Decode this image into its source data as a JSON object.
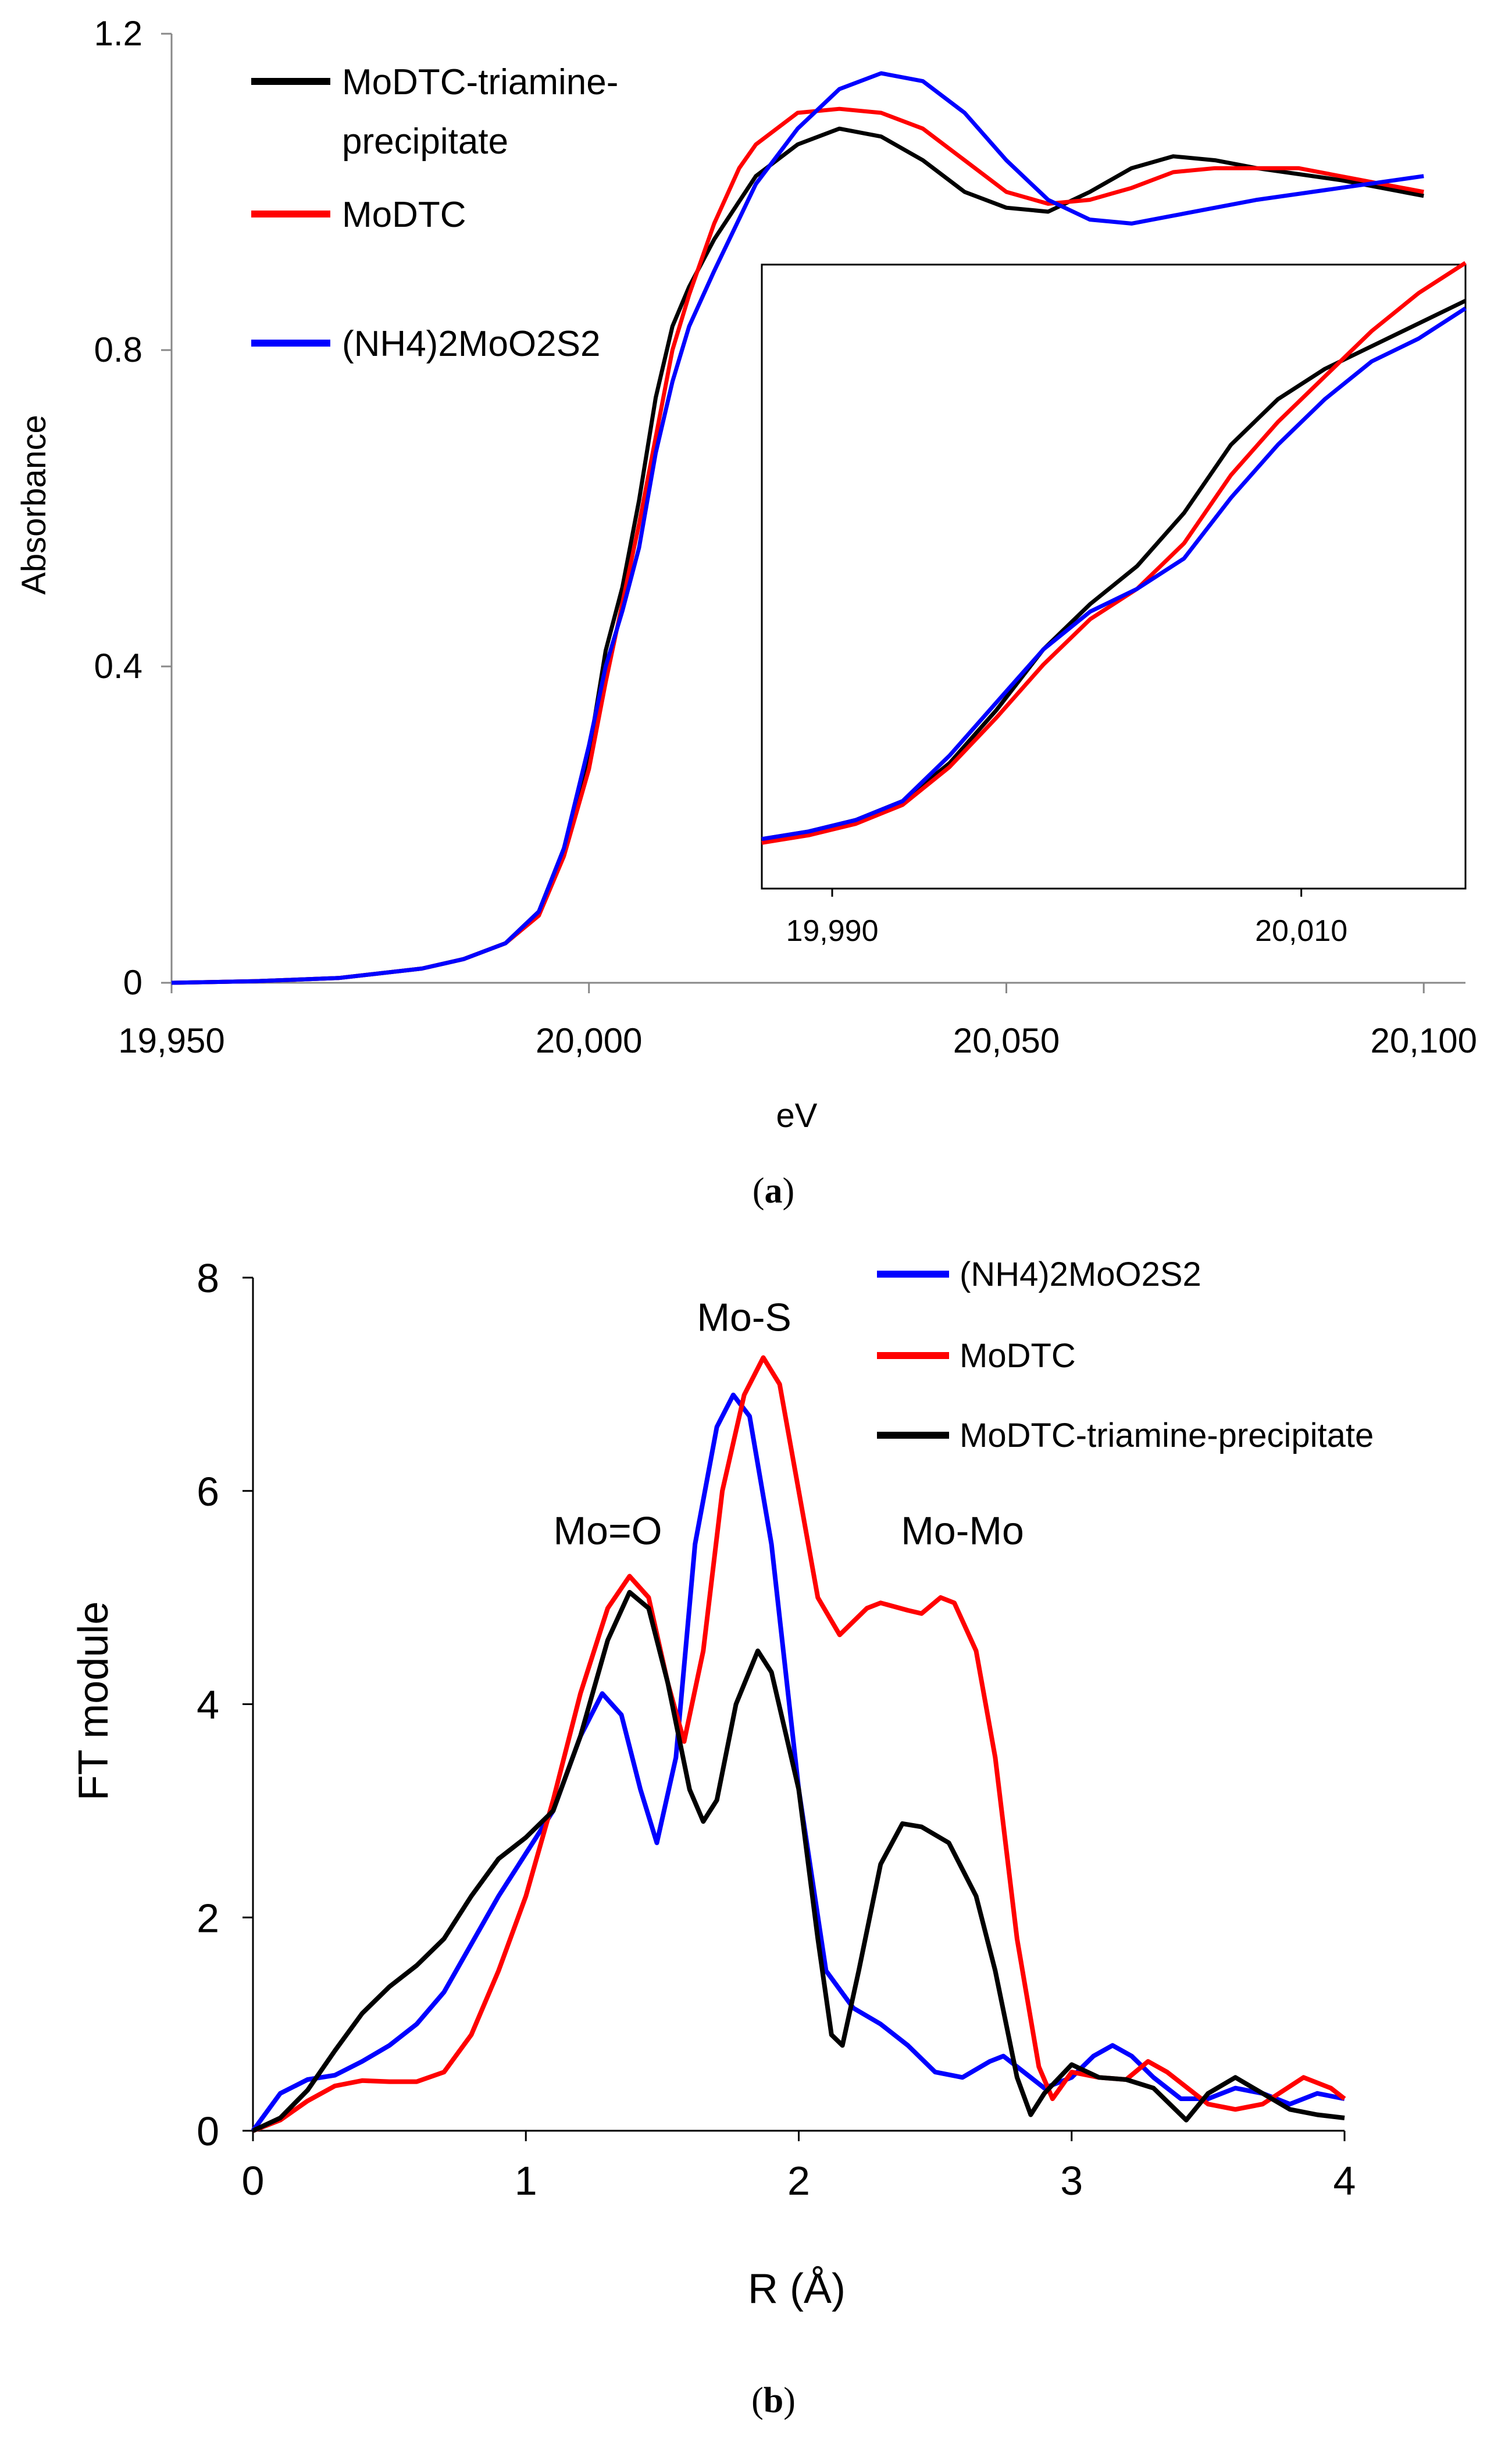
{
  "chart_data": [
    {
      "id": "a",
      "type": "line",
      "caption_letter": "a",
      "xlabel": "eV",
      "ylabel": "Absorbance",
      "xlim": [
        19950,
        20105
      ],
      "ylim": [
        0,
        1.2
      ],
      "x_ticks": [
        19950,
        20000,
        20050,
        20100
      ],
      "x_tick_labels": [
        "19,950",
        "20,000",
        "20,050",
        "20,100"
      ],
      "y_ticks": [
        0,
        0.4,
        0.8,
        1.2
      ],
      "y_tick_labels": [
        "0",
        "0.4",
        "0.8",
        "1.2"
      ],
      "legend": [
        "MoDTC-triamine-\nprecipitate",
        "MoDTC",
        "(NH4)2MoO2S2"
      ],
      "series": [
        {
          "name": "MoDTC-triamine-precipitate",
          "color": "#000000",
          "points": [
            [
              19950,
              0
            ],
            [
              19960,
              0.002
            ],
            [
              19970,
              0.006
            ],
            [
              19980,
              0.018
            ],
            [
              19985,
              0.03
            ],
            [
              19990,
              0.05
            ],
            [
              19994,
              0.09
            ],
            [
              19997,
              0.17
            ],
            [
              20000,
              0.29
            ],
            [
              20002,
              0.42
            ],
            [
              20004,
              0.5
            ],
            [
              20006,
              0.61
            ],
            [
              20008,
              0.74
            ],
            [
              20010,
              0.83
            ],
            [
              20012,
              0.88
            ],
            [
              20015,
              0.94
            ],
            [
              20020,
              1.02
            ],
            [
              20025,
              1.06
            ],
            [
              20030,
              1.08
            ],
            [
              20035,
              1.07
            ],
            [
              20040,
              1.04
            ],
            [
              20045,
              1.0
            ],
            [
              20050,
              0.98
            ],
            [
              20055,
              0.975
            ],
            [
              20060,
              1.0
            ],
            [
              20065,
              1.03
            ],
            [
              20070,
              1.045
            ],
            [
              20075,
              1.04
            ],
            [
              20080,
              1.03
            ],
            [
              20090,
              1.015
            ],
            [
              20100,
              0.995
            ]
          ]
        },
        {
          "name": "MoDTC",
          "color": "#ff0000",
          "points": [
            [
              19950,
              0
            ],
            [
              19960,
              0.002
            ],
            [
              19970,
              0.006
            ],
            [
              19980,
              0.018
            ],
            [
              19985,
              0.03
            ],
            [
              19990,
              0.05
            ],
            [
              19994,
              0.085
            ],
            [
              19997,
              0.16
            ],
            [
              20000,
              0.27
            ],
            [
              20002,
              0.38
            ],
            [
              20004,
              0.48
            ],
            [
              20006,
              0.58
            ],
            [
              20008,
              0.69
            ],
            [
              20010,
              0.8
            ],
            [
              20012,
              0.87
            ],
            [
              20015,
              0.96
            ],
            [
              20018,
              1.03
            ],
            [
              20020,
              1.06
            ],
            [
              20025,
              1.1
            ],
            [
              20030,
              1.105
            ],
            [
              20035,
              1.1
            ],
            [
              20040,
              1.08
            ],
            [
              20045,
              1.04
            ],
            [
              20050,
              1.0
            ],
            [
              20055,
              0.985
            ],
            [
              20060,
              0.99
            ],
            [
              20065,
              1.005
            ],
            [
              20070,
              1.025
            ],
            [
              20075,
              1.03
            ],
            [
              20085,
              1.03
            ],
            [
              20100,
              1.0
            ]
          ]
        },
        {
          "name": "(NH4)2MoO2S2",
          "color": "#0000ff",
          "points": [
            [
              19950,
              0
            ],
            [
              19960,
              0.002
            ],
            [
              19970,
              0.006
            ],
            [
              19980,
              0.018
            ],
            [
              19985,
              0.03
            ],
            [
              19990,
              0.05
            ],
            [
              19994,
              0.09
            ],
            [
              19997,
              0.17
            ],
            [
              20000,
              0.3
            ],
            [
              20002,
              0.4
            ],
            [
              20004,
              0.47
            ],
            [
              20006,
              0.55
            ],
            [
              20008,
              0.67
            ],
            [
              20010,
              0.76
            ],
            [
              20012,
              0.83
            ],
            [
              20015,
              0.9
            ],
            [
              20020,
              1.01
            ],
            [
              20025,
              1.08
            ],
            [
              20030,
              1.13
            ],
            [
              20035,
              1.15
            ],
            [
              20040,
              1.14
            ],
            [
              20045,
              1.1
            ],
            [
              20050,
              1.04
            ],
            [
              20055,
              0.99
            ],
            [
              20060,
              0.965
            ],
            [
              20065,
              0.96
            ],
            [
              20070,
              0.97
            ],
            [
              20080,
              0.99
            ],
            [
              20090,
              1.005
            ],
            [
              20100,
              1.02
            ]
          ]
        }
      ],
      "inset": {
        "x_ticks": [
          19990,
          20010
        ],
        "x_tick_labels": [
          "19,990",
          "20,010"
        ]
      }
    },
    {
      "id": "b",
      "type": "line",
      "caption_letter": "b",
      "xlabel": "R (Å)",
      "ylabel": "FT module",
      "xlim": [
        0,
        4
      ],
      "ylim": [
        0,
        8
      ],
      "x_ticks": [
        0,
        1,
        2,
        3,
        4
      ],
      "x_tick_labels": [
        "0",
        "1",
        "2",
        "3",
        "4"
      ],
      "y_ticks": [
        0,
        2,
        4,
        6,
        8
      ],
      "y_tick_labels": [
        "0",
        "2",
        "4",
        "6",
        "8"
      ],
      "legend": [
        "(NH4)2MoO2S2",
        "MoDTC",
        "MoDTC-triamine-precipitate"
      ],
      "annotations": [
        {
          "text": "Mo=O",
          "x": 1.3,
          "y": 5.5
        },
        {
          "text": "Mo-S",
          "x": 1.8,
          "y": 7.5
        },
        {
          "text": "Mo-Mo",
          "x": 2.6,
          "y": 5.5
        }
      ],
      "series": [
        {
          "name": "(NH4)2MoO2S2",
          "color": "#0000ff",
          "points": [
            [
              0,
              0
            ],
            [
              0.1,
              0.35
            ],
            [
              0.2,
              0.48
            ],
            [
              0.3,
              0.52
            ],
            [
              0.4,
              0.65
            ],
            [
              0.5,
              0.8
            ],
            [
              0.6,
              1.0
            ],
            [
              0.7,
              1.3
            ],
            [
              0.8,
              1.75
            ],
            [
              0.9,
              2.2
            ],
            [
              1.0,
              2.6
            ],
            [
              1.1,
              3.0
            ],
            [
              1.2,
              3.7
            ],
            [
              1.28,
              4.1
            ],
            [
              1.35,
              3.9
            ],
            [
              1.42,
              3.2
            ],
            [
              1.48,
              2.7
            ],
            [
              1.55,
              3.5
            ],
            [
              1.62,
              5.5
            ],
            [
              1.7,
              6.6
            ],
            [
              1.76,
              6.9
            ],
            [
              1.82,
              6.7
            ],
            [
              1.9,
              5.5
            ],
            [
              2.0,
              3.2
            ],
            [
              2.1,
              1.5
            ],
            [
              2.2,
              1.15
            ],
            [
              2.3,
              1.0
            ],
            [
              2.4,
              0.8
            ],
            [
              2.5,
              0.55
            ],
            [
              2.6,
              0.5
            ],
            [
              2.7,
              0.65
            ],
            [
              2.75,
              0.7
            ],
            [
              2.85,
              0.5
            ],
            [
              2.9,
              0.4
            ],
            [
              3.0,
              0.5
            ],
            [
              3.08,
              0.7
            ],
            [
              3.15,
              0.8
            ],
            [
              3.22,
              0.7
            ],
            [
              3.3,
              0.5
            ],
            [
              3.4,
              0.3
            ],
            [
              3.5,
              0.3
            ],
            [
              3.6,
              0.4
            ],
            [
              3.7,
              0.35
            ],
            [
              3.8,
              0.25
            ],
            [
              3.9,
              0.35
            ],
            [
              4.0,
              0.3
            ]
          ]
        },
        {
          "name": "MoDTC",
          "color": "#ff0000",
          "points": [
            [
              0,
              0
            ],
            [
              0.1,
              0.1
            ],
            [
              0.2,
              0.28
            ],
            [
              0.3,
              0.42
            ],
            [
              0.4,
              0.47
            ],
            [
              0.5,
              0.46
            ],
            [
              0.6,
              0.46
            ],
            [
              0.7,
              0.55
            ],
            [
              0.8,
              0.9
            ],
            [
              0.9,
              1.5
            ],
            [
              1.0,
              2.2
            ],
            [
              1.1,
              3.1
            ],
            [
              1.2,
              4.1
            ],
            [
              1.3,
              4.9
            ],
            [
              1.38,
              5.2
            ],
            [
              1.45,
              5.0
            ],
            [
              1.52,
              4.2
            ],
            [
              1.58,
              3.65
            ],
            [
              1.65,
              4.5
            ],
            [
              1.72,
              6.0
            ],
            [
              1.8,
              6.9
            ],
            [
              1.87,
              7.25
            ],
            [
              1.93,
              7.0
            ],
            [
              2.0,
              6.0
            ],
            [
              2.07,
              5.0
            ],
            [
              2.15,
              4.65
            ],
            [
              2.25,
              4.9
            ],
            [
              2.3,
              4.95
            ],
            [
              2.4,
              4.88
            ],
            [
              2.45,
              4.85
            ],
            [
              2.52,
              5.0
            ],
            [
              2.57,
              4.95
            ],
            [
              2.65,
              4.5
            ],
            [
              2.72,
              3.5
            ],
            [
              2.8,
              1.8
            ],
            [
              2.88,
              0.6
            ],
            [
              2.93,
              0.3
            ],
            [
              3.0,
              0.55
            ],
            [
              3.1,
              0.5
            ],
            [
              3.2,
              0.48
            ],
            [
              3.28,
              0.65
            ],
            [
              3.35,
              0.55
            ],
            [
              3.5,
              0.25
            ],
            [
              3.6,
              0.2
            ],
            [
              3.7,
              0.25
            ],
            [
              3.85,
              0.5
            ],
            [
              3.95,
              0.4
            ],
            [
              4.0,
              0.3
            ]
          ]
        },
        {
          "name": "MoDTC-triamine-precipitate",
          "color": "#000000",
          "points": [
            [
              0,
              0
            ],
            [
              0.1,
              0.12
            ],
            [
              0.2,
              0.38
            ],
            [
              0.3,
              0.75
            ],
            [
              0.4,
              1.1
            ],
            [
              0.5,
              1.35
            ],
            [
              0.6,
              1.55
            ],
            [
              0.7,
              1.8
            ],
            [
              0.8,
              2.2
            ],
            [
              0.9,
              2.55
            ],
            [
              1.0,
              2.75
            ],
            [
              1.1,
              3.0
            ],
            [
              1.2,
              3.7
            ],
            [
              1.3,
              4.6
            ],
            [
              1.38,
              5.05
            ],
            [
              1.45,
              4.9
            ],
            [
              1.52,
              4.2
            ],
            [
              1.6,
              3.2
            ],
            [
              1.65,
              2.9
            ],
            [
              1.7,
              3.1
            ],
            [
              1.77,
              4.0
            ],
            [
              1.85,
              4.5
            ],
            [
              1.9,
              4.3
            ],
            [
              2.0,
              3.2
            ],
            [
              2.07,
              1.8
            ],
            [
              2.12,
              0.9
            ],
            [
              2.16,
              0.8
            ],
            [
              2.22,
              1.5
            ],
            [
              2.3,
              2.5
            ],
            [
              2.38,
              2.88
            ],
            [
              2.45,
              2.85
            ],
            [
              2.55,
              2.7
            ],
            [
              2.65,
              2.2
            ],
            [
              2.72,
              1.5
            ],
            [
              2.8,
              0.5
            ],
            [
              2.85,
              0.15
            ],
            [
              2.9,
              0.35
            ],
            [
              3.0,
              0.62
            ],
            [
              3.1,
              0.5
            ],
            [
              3.2,
              0.48
            ],
            [
              3.3,
              0.4
            ],
            [
              3.42,
              0.1
            ],
            [
              3.5,
              0.35
            ],
            [
              3.6,
              0.5
            ],
            [
              3.7,
              0.35
            ],
            [
              3.8,
              0.2
            ],
            [
              3.9,
              0.15
            ],
            [
              4.0,
              0.12
            ]
          ]
        }
      ]
    }
  ]
}
